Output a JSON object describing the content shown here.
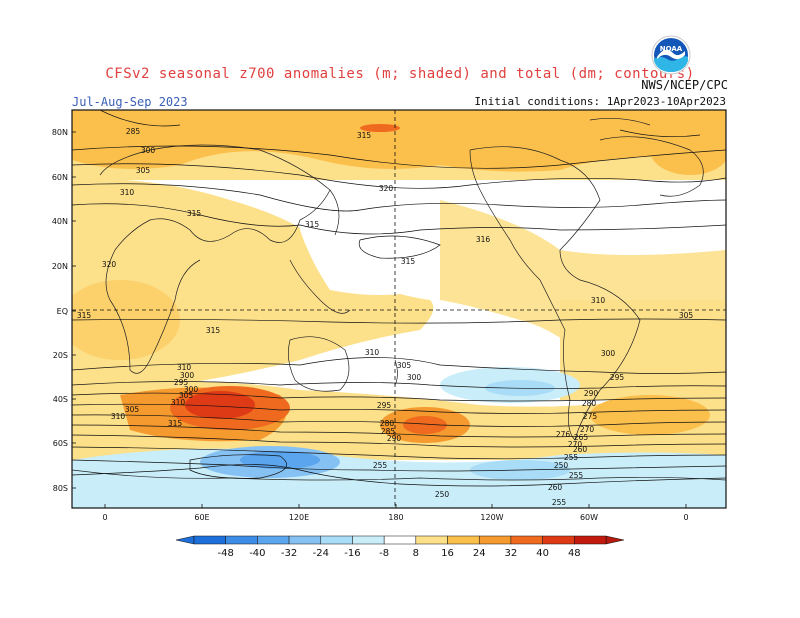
{
  "title": "CFSv2 seasonal z700 anomalies (m; shaded) and total (dm; contours)",
  "period": "Jul-Aug-Sep 2023",
  "initial_conditions": "Initial conditions: 1Apr2023-10Apr2023",
  "agency": "NWS/NCEP/CPC",
  "logo": {
    "text": "NOAA",
    "icon": "noaa-logo-icon"
  },
  "latitude_labels": [
    "80N",
    "60N",
    "40N",
    "20N",
    "EQ",
    "20S",
    "40S",
    "60S",
    "80S"
  ],
  "longitude_labels": [
    "0",
    "60E",
    "120E",
    "180",
    "120W",
    "60W",
    "0"
  ],
  "colorbar": {
    "ticks": [
      "-48",
      "-40",
      "-32",
      "-24",
      "-16",
      "-8",
      "8",
      "16",
      "24",
      "32",
      "40",
      "48"
    ],
    "colors": [
      "#1e6fd9",
      "#3d8ce6",
      "#5aa5ee",
      "#86c1f3",
      "#a9dcf7",
      "#c9eefa",
      "#ffffff",
      "#fde08a",
      "#fbbf4c",
      "#f59a2e",
      "#ef6a1f",
      "#df3a16",
      "#c21a0e"
    ],
    "low_end_color": "#1e6fd9",
    "high_end_color": "#b41a0d"
  },
  "contour_labels": [
    "285",
    "300",
    "305",
    "310",
    "315",
    "320",
    "315",
    "315",
    "310",
    "300",
    "295",
    "300",
    "305",
    "310",
    "305",
    "310",
    "315",
    "315",
    "320",
    "315",
    "316",
    "315",
    "310",
    "305",
    "300",
    "295",
    "290",
    "280",
    "275",
    "270",
    "265",
    "260",
    "255",
    "250",
    "255",
    "260",
    "270",
    "276",
    "280",
    "285",
    "290",
    "295",
    "300",
    "305",
    "310",
    "255",
    "250",
    "255"
  ],
  "chart_data": {
    "type": "map",
    "description_fields": {
      "shaded_variable": "z700 anomalies (m)",
      "contour_variable": "total (dm)"
    },
    "shading_levels": [
      -48,
      -40,
      -32,
      -24,
      -16,
      -8,
      8,
      16,
      24,
      32,
      40,
      48
    ],
    "contour_levels_dm": [
      250,
      255,
      260,
      265,
      270,
      275,
      280,
      285,
      290,
      295,
      300,
      305,
      310,
      315,
      320
    ]
  }
}
